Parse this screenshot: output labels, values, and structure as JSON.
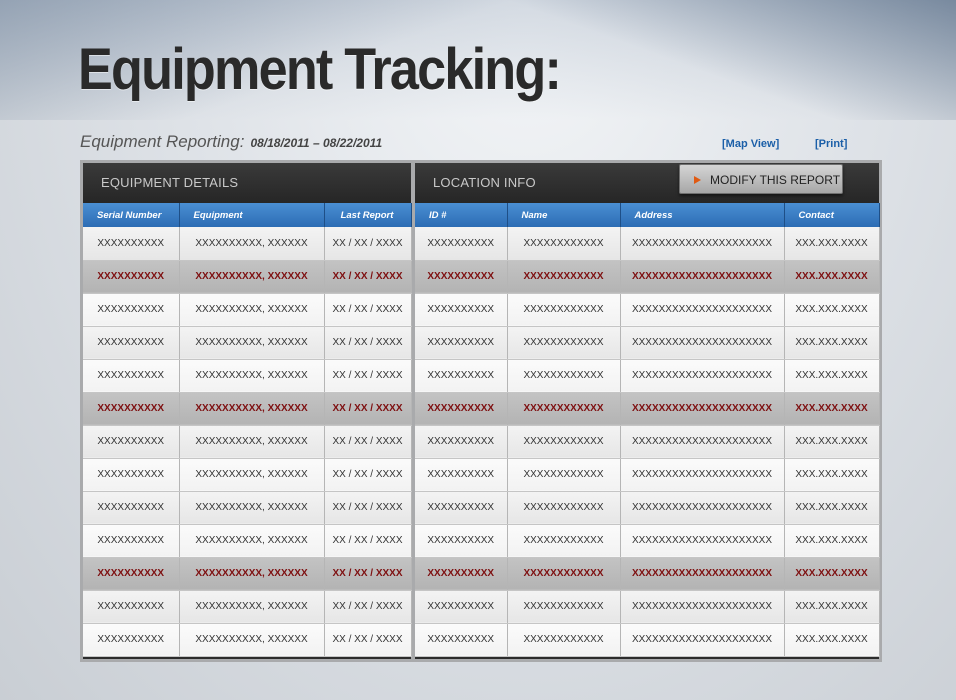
{
  "page": {
    "title": "Equipment Tracking:",
    "subtitle_label": "Equipment Reporting:",
    "date_range": "08/18/2011 – 08/22/2011",
    "links": {
      "map_view": "[Map View]",
      "print": "[Print]"
    }
  },
  "colors": {
    "header_blue": "#2c6cb4",
    "alert_text": "#7e0f10",
    "link_blue": "#1b5fa8",
    "button_arrow": "#e05a12"
  },
  "equipment_details": {
    "heading": "EQUIPMENT DETAILS",
    "columns": [
      "Serial Number",
      "Equipment",
      "Last Report"
    ]
  },
  "location_info": {
    "heading": "LOCATION INFO",
    "modify_button": "MODIFY THIS REPORT",
    "modify_icon": "play-arrow-icon",
    "columns": [
      "ID #",
      "Name",
      "Address",
      "Contact"
    ]
  },
  "rows": [
    {
      "status": "normal",
      "serial": "XXXXXXXXXX",
      "equipment": "XXXXXXXXXX, XXXXXX",
      "last_report": "XX / XX / XXXX",
      "id": "XXXXXXXXXX",
      "name": "XXXXXXXXXXXX",
      "address": "XXXXXXXXXXXXXXXXXXXXX",
      "contact": "XXX.XXX.XXXX"
    },
    {
      "status": "alert",
      "serial": "XXXXXXXXXX",
      "equipment": "XXXXXXXXXX, XXXXXX",
      "last_report": "XX / XX / XXXX",
      "id": "XXXXXXXXXX",
      "name": "XXXXXXXXXXXX",
      "address": "XXXXXXXXXXXXXXXXXXXXX",
      "contact": "XXX.XXX.XXXX"
    },
    {
      "status": "normal",
      "serial": "XXXXXXXXXX",
      "equipment": "XXXXXXXXXX, XXXXXX",
      "last_report": "XX / XX / XXXX",
      "id": "XXXXXXXXXX",
      "name": "XXXXXXXXXXXX",
      "address": "XXXXXXXXXXXXXXXXXXXXX",
      "contact": "XXX.XXX.XXXX"
    },
    {
      "status": "normal",
      "serial": "XXXXXXXXXX",
      "equipment": "XXXXXXXXXX, XXXXXX",
      "last_report": "XX / XX / XXXX",
      "id": "XXXXXXXXXX",
      "name": "XXXXXXXXXXXX",
      "address": "XXXXXXXXXXXXXXXXXXXXX",
      "contact": "XXX.XXX.XXXX"
    },
    {
      "status": "normal",
      "serial": "XXXXXXXXXX",
      "equipment": "XXXXXXXXXX, XXXXXX",
      "last_report": "XX / XX / XXXX",
      "id": "XXXXXXXXXX",
      "name": "XXXXXXXXXXXX",
      "address": "XXXXXXXXXXXXXXXXXXXXX",
      "contact": "XXX.XXX.XXXX"
    },
    {
      "status": "alert",
      "serial": "XXXXXXXXXX",
      "equipment": "XXXXXXXXXX, XXXXXX",
      "last_report": "XX / XX / XXXX",
      "id": "XXXXXXXXXX",
      "name": "XXXXXXXXXXXX",
      "address": "XXXXXXXXXXXXXXXXXXXXX",
      "contact": "XXX.XXX.XXXX"
    },
    {
      "status": "normal",
      "serial": "XXXXXXXXXX",
      "equipment": "XXXXXXXXXX, XXXXXX",
      "last_report": "XX / XX / XXXX",
      "id": "XXXXXXXXXX",
      "name": "XXXXXXXXXXXX",
      "address": "XXXXXXXXXXXXXXXXXXXXX",
      "contact": "XXX.XXX.XXXX"
    },
    {
      "status": "normal",
      "serial": "XXXXXXXXXX",
      "equipment": "XXXXXXXXXX, XXXXXX",
      "last_report": "XX / XX / XXXX",
      "id": "XXXXXXXXXX",
      "name": "XXXXXXXXXXXX",
      "address": "XXXXXXXXXXXXXXXXXXXXX",
      "contact": "XXX.XXX.XXXX"
    },
    {
      "status": "normal",
      "serial": "XXXXXXXXXX",
      "equipment": "XXXXXXXXXX, XXXXXX",
      "last_report": "XX / XX / XXXX",
      "id": "XXXXXXXXXX",
      "name": "XXXXXXXXXXXX",
      "address": "XXXXXXXXXXXXXXXXXXXXX",
      "contact": "XXX.XXX.XXXX"
    },
    {
      "status": "normal",
      "serial": "XXXXXXXXXX",
      "equipment": "XXXXXXXXXX, XXXXXX",
      "last_report": "XX / XX / XXXX",
      "id": "XXXXXXXXXX",
      "name": "XXXXXXXXXXXX",
      "address": "XXXXXXXXXXXXXXXXXXXXX",
      "contact": "XXX.XXX.XXXX"
    },
    {
      "status": "alert",
      "serial": "XXXXXXXXXX",
      "equipment": "XXXXXXXXXX, XXXXXX",
      "last_report": "XX / XX / XXXX",
      "id": "XXXXXXXXXX",
      "name": "XXXXXXXXXXXX",
      "address": "XXXXXXXXXXXXXXXXXXXXX",
      "contact": "XXX.XXX.XXXX"
    },
    {
      "status": "normal",
      "serial": "XXXXXXXXXX",
      "equipment": "XXXXXXXXXX, XXXXXX",
      "last_report": "XX / XX / XXXX",
      "id": "XXXXXXXXXX",
      "name": "XXXXXXXXXXXX",
      "address": "XXXXXXXXXXXXXXXXXXXXX",
      "contact": "XXX.XXX.XXXX"
    },
    {
      "status": "normal",
      "serial": "XXXXXXXXXX",
      "equipment": "XXXXXXXXXX, XXXXXX",
      "last_report": "XX / XX / XXXX",
      "id": "XXXXXXXXXX",
      "name": "XXXXXXXXXXXX",
      "address": "XXXXXXXXXXXXXXXXXXXXX",
      "contact": "XXX.XXX.XXXX"
    }
  ]
}
